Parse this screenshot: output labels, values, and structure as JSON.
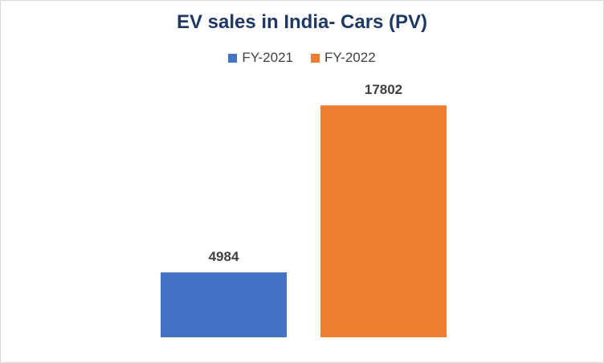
{
  "chart_data": {
    "type": "bar",
    "title": "EV sales in India- Cars (PV)",
    "xlabel": "",
    "ylabel": "",
    "ylim": [
      0,
      18000
    ],
    "legend_position": "top",
    "grid": false,
    "series": [
      {
        "name": "FY-2021",
        "values": [
          4984
        ],
        "color": "#4472c4"
      },
      {
        "name": "FY-2022",
        "values": [
          17802
        ],
        "color": "#ed7d31"
      }
    ]
  }
}
